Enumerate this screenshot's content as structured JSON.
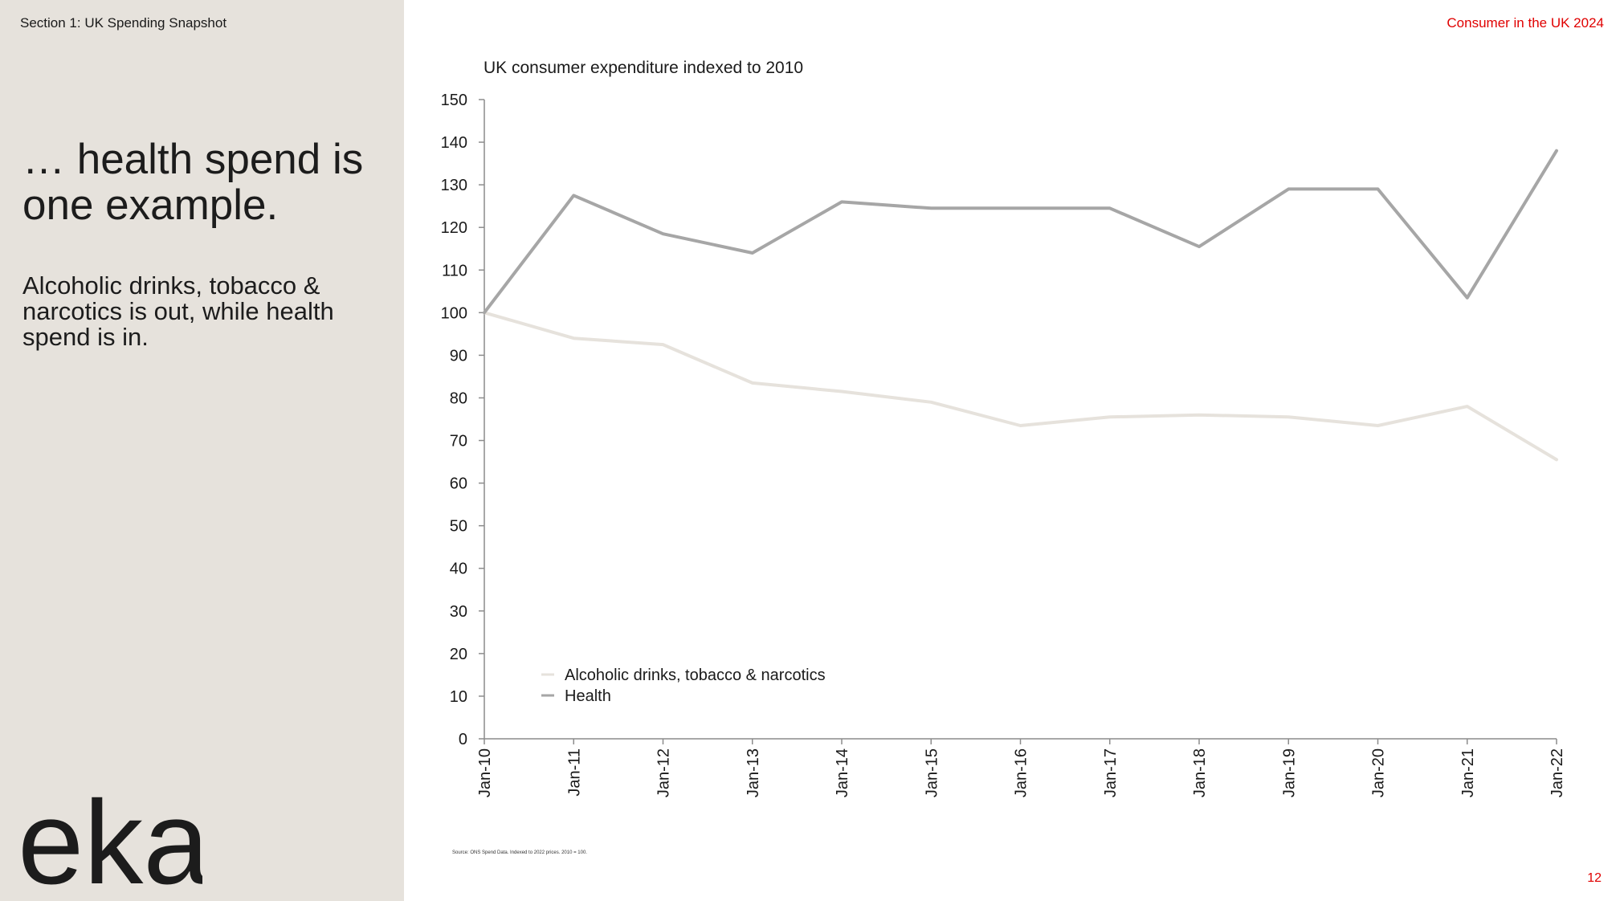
{
  "header": {
    "section": "Section 1: UK Spending Snapshot",
    "brand_title": "Consumer in the UK 2024",
    "page_number": "12"
  },
  "sidebar": {
    "headline": "… health spend is one example.",
    "subhead": "Alcoholic drinks, tobacco & narcotics is out, while health spend is in.",
    "logo_text": "eka"
  },
  "source_note": "Source: ONS Spend Data. Indexed to 2022 prices. 2010 = 100.",
  "colors": {
    "accent": "#e00000",
    "sidebar_bg": "#e6e2dc",
    "health": "#a6a6a6",
    "alcohol": "#e6e2dc"
  },
  "chart_data": {
    "type": "line",
    "title": "UK consumer expenditure indexed to 2010",
    "categories": [
      "Jan-10",
      "Jan-11",
      "Jan-12",
      "Jan-13",
      "Jan-14",
      "Jan-15",
      "Jan-16",
      "Jan-17",
      "Jan-18",
      "Jan-19",
      "Jan-20",
      "Jan-21",
      "Jan-22"
    ],
    "ylim": [
      0,
      150
    ],
    "yticks": [
      0,
      10,
      20,
      30,
      40,
      50,
      60,
      70,
      80,
      90,
      100,
      110,
      120,
      130,
      140,
      150
    ],
    "grid": false,
    "legend_position": "bottom-left",
    "series": [
      {
        "name": "Alcoholic drinks, tobacco & narcotics",
        "color": "#e6e2dc",
        "values": [
          100,
          94,
          92.5,
          83.5,
          81.5,
          79,
          73.5,
          75.5,
          76,
          75.5,
          73.5,
          78,
          65.5
        ]
      },
      {
        "name": "Health",
        "color": "#a6a6a6",
        "values": [
          100,
          127.5,
          118.5,
          114,
          126,
          124.5,
          124.5,
          124.5,
          115.5,
          129,
          129,
          103.5,
          138
        ]
      }
    ]
  }
}
